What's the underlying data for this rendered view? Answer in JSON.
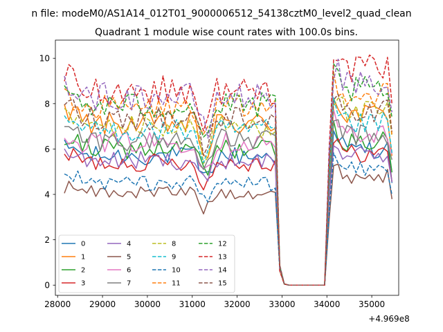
{
  "chart_data": {
    "type": "line",
    "suptitle": "n file: modeM0/AS1A14_012T01_9000006512_54138cztM0_level2_quad_clean",
    "title": "Quadrant 1 module wise count rates with 100.0s bins.",
    "xlabel": "",
    "ylabel": "",
    "x_offset_label": "+4.969e8",
    "xlim": [
      27950,
      35600
    ],
    "ylim": [
      -0.45,
      10.8
    ],
    "xticks": [
      28000,
      29000,
      30000,
      31000,
      32000,
      33000,
      34000,
      35000
    ],
    "yticks": [
      0,
      2,
      4,
      6,
      8,
      10
    ],
    "xtick_labels": [
      "28000",
      "29000",
      "30000",
      "31000",
      "32000",
      "33000",
      "34000",
      "35000"
    ],
    "ytick_labels": [
      "0",
      "2",
      "4",
      "6",
      "8",
      "10"
    ],
    "grid": false,
    "legend_position": "lower-left",
    "legend_columns": 4,
    "bin_seconds": 100,
    "x_start": 28150,
    "segments": [
      {
        "from": 28150,
        "to": 32850,
        "n": 48
      },
      {
        "from": 33150,
        "to": 33950,
        "n": 9
      },
      {
        "from": 34150,
        "to": 35450,
        "n": 14
      }
    ],
    "series": [
      {
        "name": "0",
        "color": "#1f77b4",
        "dash": "solid",
        "base": 5.7,
        "high": 6.0
      },
      {
        "name": "1",
        "color": "#ff7f0e",
        "dash": "solid",
        "base": 7.1,
        "high": 7.5
      },
      {
        "name": "2",
        "color": "#2ca02c",
        "dash": "solid",
        "base": 6.0,
        "high": 6.3
      },
      {
        "name": "3",
        "color": "#d62728",
        "dash": "solid",
        "base": 5.4,
        "high": 5.8
      },
      {
        "name": "4",
        "color": "#9467bd",
        "dash": "solid",
        "base": 5.5,
        "high": 5.7
      },
      {
        "name": "5",
        "color": "#8c564b",
        "dash": "solid",
        "base": 4.1,
        "high": 4.8
      },
      {
        "name": "6",
        "color": "#e377c2",
        "dash": "solid",
        "base": 6.3,
        "high": 6.7
      },
      {
        "name": "7",
        "color": "#7f7f7f",
        "dash": "solid",
        "base": 6.4,
        "high": 6.6
      },
      {
        "name": "8",
        "color": "#bcbd22",
        "dash": "dashed",
        "base": 7.0,
        "high": 7.6
      },
      {
        "name": "9",
        "color": "#17becf",
        "dash": "dashed",
        "base": 6.8,
        "high": 7.1
      },
      {
        "name": "10",
        "color": "#1f77b4",
        "dash": "dashed",
        "base": 4.5,
        "high": 5.1
      },
      {
        "name": "11",
        "color": "#ff7f0e",
        "dash": "dashed",
        "base": 7.8,
        "high": 8.4
      },
      {
        "name": "12",
        "color": "#2ca02c",
        "dash": "dashed",
        "base": 7.9,
        "high": 8.6
      },
      {
        "name": "13",
        "color": "#d62728",
        "dash": "dashed",
        "base": 8.6,
        "high": 9.5
      },
      {
        "name": "14",
        "color": "#9467bd",
        "dash": "dashed",
        "base": 8.3,
        "high": 8.8
      },
      {
        "name": "15",
        "color": "#8c564b",
        "dash": "dashed",
        "base": 7.4,
        "high": 7.7
      }
    ]
  }
}
